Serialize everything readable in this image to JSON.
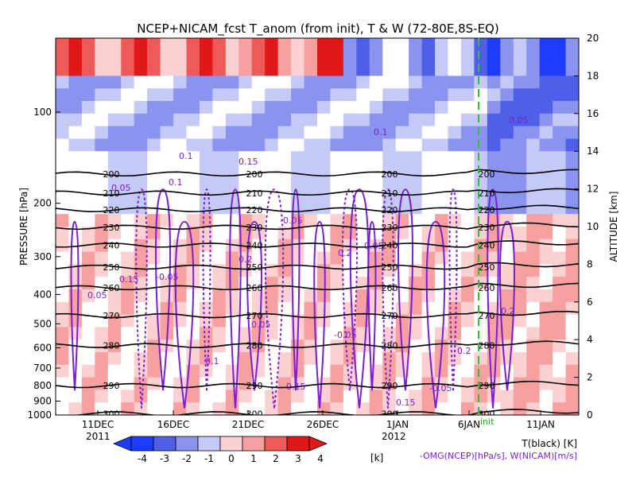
{
  "chart_data": {
    "type": "heatmap",
    "title": "NCEP+NICAM_fcst T_anom (from init), T & W  (72-80E,8S-EQ)",
    "ylabel_left": "PRESSURE [hPa]",
    "ylabel_right": "ALTITUDE [km]",
    "x_ticks": [
      "11DEC",
      "16DEC",
      "21DEC",
      "26DEC",
      "1JAN",
      "6JAN",
      "11JAN"
    ],
    "x_year_start": "2011",
    "x_year_end": "2012",
    "init_label": "init",
    "pressure_ticks": [
      "100",
      "200",
      "300",
      "400",
      "500",
      "600",
      "700",
      "800",
      "900",
      "1000"
    ],
    "altitude_ticks": [
      "0",
      "2",
      "4",
      "6",
      "8",
      "10",
      "12",
      "14",
      "16",
      "18",
      "20"
    ],
    "colorbar": {
      "ticks": [
        "-4",
        "-3",
        "-2",
        "-1",
        "0",
        "1",
        "2",
        "3",
        "4"
      ],
      "unit": "[k]",
      "colors": [
        "#1e3cff",
        "#4f5fe8",
        "#8a93ee",
        "#c5c9f6",
        "#ffffff",
        "#fbd0d0",
        "#f6a0a0",
        "#ee5a5a",
        "#e01818"
      ]
    },
    "legend_black": "T(black) [K]",
    "legend_purple": "-OMG(NCEP)[hPa/s], W(NICAM)[m/s]",
    "temperature_contours": [
      {
        "label": "200",
        "p": 160
      },
      {
        "label": "210",
        "p": 185
      },
      {
        "label": "220",
        "p": 210
      },
      {
        "label": "230",
        "p": 240
      },
      {
        "label": "240",
        "p": 275
      },
      {
        "label": "250",
        "p": 325
      },
      {
        "label": "260",
        "p": 380
      },
      {
        "label": "270",
        "p": 470
      },
      {
        "label": "280",
        "p": 590
      },
      {
        "label": "290",
        "p": 800
      },
      {
        "label": "300",
        "p": 990
      }
    ],
    "purple_labels": [
      "0.05",
      "0.1",
      "0.15",
      "-0.05",
      "0.2"
    ]
  }
}
